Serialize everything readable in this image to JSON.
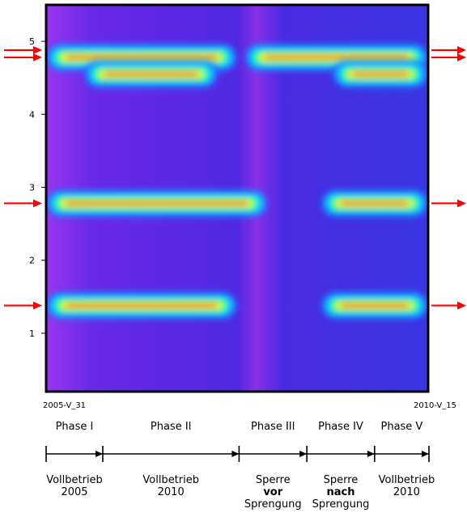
{
  "chart_data": {
    "type": "heatmap",
    "x_range": [
      "2005-V_31",
      "2010-V_15"
    ],
    "x_start_label": "2005-V_31",
    "x_end_label": "2010-V_15",
    "ylim": [
      0.2,
      5.5
    ],
    "yticks": [
      1,
      2,
      3,
      4,
      5
    ],
    "colorscale": [
      "#3030c0",
      "#8020e0",
      "#2070ff",
      "#00e0ff",
      "#30ff60",
      "#ffff00",
      "#ff8000",
      "#ff0000"
    ],
    "background_color": "#5a2ae8",
    "bands": [
      {
        "y": 1.38,
        "segments": [
          [
            0.0,
            0.5
          ],
          [
            0.72,
            1.0
          ]
        ]
      },
      {
        "y": 2.78,
        "segments": [
          [
            0.0,
            0.58
          ],
          [
            0.72,
            1.0
          ]
        ]
      },
      {
        "y": 4.78,
        "segments": [
          [
            0.0,
            0.5
          ],
          [
            0.52,
            1.0
          ]
        ]
      },
      {
        "y": 4.55,
        "segments": [
          [
            0.1,
            0.45
          ],
          [
            0.75,
            1.0
          ]
        ]
      }
    ],
    "arrows": [
      {
        "side": "left",
        "y": 4.88
      },
      {
        "side": "left",
        "y": 4.78
      },
      {
        "side": "left",
        "y": 2.78
      },
      {
        "side": "left",
        "y": 1.38
      },
      {
        "side": "right",
        "y": 4.88
      },
      {
        "side": "right",
        "y": 4.78
      },
      {
        "side": "right",
        "y": 2.78
      },
      {
        "side": "right",
        "y": 1.38
      }
    ],
    "arrow_color": "#ff0000"
  },
  "phases": [
    {
      "label": "Phase I",
      "start": 0.0,
      "end": 0.148
    },
    {
      "label": "Phase II",
      "start": 0.148,
      "end": 0.504
    },
    {
      "label": "Phase III",
      "start": 0.504,
      "end": 0.681
    },
    {
      "label": "Phase IV",
      "start": 0.681,
      "end": 0.858
    },
    {
      "label": "Phase V",
      "start": 0.858,
      "end": 1.0
    }
  ],
  "descriptions": [
    {
      "lines": [
        "Vollbetrieb",
        "2005"
      ],
      "bold_line": -1
    },
    {
      "lines": [
        "Vollbetrieb",
        "2010"
      ],
      "bold_line": -1
    },
    {
      "lines": [
        "Sperre",
        "vor",
        "Sprengung"
      ],
      "bold_line": 1
    },
    {
      "lines": [
        "Sperre",
        "nach",
        "Sprengung"
      ],
      "bold_line": 1
    },
    {
      "lines": [
        "Vollbetrieb",
        "2010"
      ],
      "bold_line": -1
    }
  ]
}
